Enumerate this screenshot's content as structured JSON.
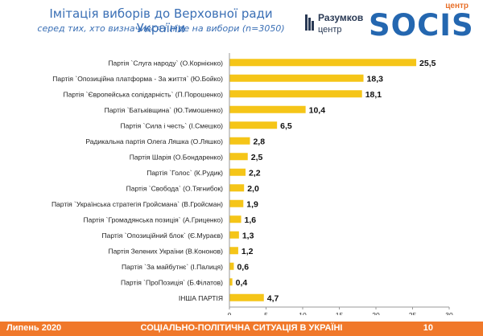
{
  "header": {
    "title": "Імітація виборів до Верховної ради України",
    "subtitle": "серед тих, хто визначився і піде на вибори (n=3050)"
  },
  "logos": {
    "razumkov_name": "Разумков",
    "razumkov_sub": "центр",
    "socis_centr": "центр",
    "socis_name": "SOCIS"
  },
  "footer": {
    "date": "Липень 2020",
    "caption": "СОЦІАЛЬНО-ПОЛІТИЧНА СИТУАЦІЯ В УКРАЇНІ",
    "page": "10"
  },
  "colors": {
    "bar": "#f5c518",
    "title": "#3a6fb5",
    "footer": "#f0782a",
    "socis_blue": "#2467b0",
    "socis_orange": "#e8702a"
  },
  "chart_data": {
    "type": "bar",
    "orientation": "horizontal",
    "categories": [
      "Партія `Слуга народу` (О.Корнієнко)",
      "Партія `Опозиційна платформа - За життя` (Ю.Бойко)",
      "Партія `Європейська солідарність` (П.Порошенко)",
      "Партія `Батьківщина` (Ю.Тимошенко)",
      "Партія `Сила і честь` (І.Смешко)",
      "Радикальна партія Олега Ляшка (О.Ляшко)",
      "Партія Шарія (О.Бондаренко)",
      "Партія `Голос` (К.Рудик)",
      "Партія `Свобода` (О.Тягнибок)",
      "Партія `Українська стратегія Гройсмана` (В.Гройсман)",
      "Партія `Громадянська позиція` (А.Гриценко)",
      "Партія `Опозиційний блок` (Є.Мураєв)",
      "Партія Зелених України (В.Кононов)",
      "Партія `За майбутнє` (І.Палиця)",
      "Партія `ПроПозиція` (Б.Філатов)",
      "ІНША ПАРТІЯ"
    ],
    "values": [
      25.5,
      18.3,
      18.1,
      10.4,
      6.5,
      2.8,
      2.5,
      2.2,
      2.0,
      1.9,
      1.6,
      1.3,
      1.2,
      0.6,
      0.4,
      4.7
    ],
    "value_labels": [
      "25,5",
      "18,3",
      "18,1",
      "10,4",
      "6,5",
      "2,8",
      "2,5",
      "2,2",
      "2,0",
      "1,9",
      "1,6",
      "1,3",
      "1,2",
      "0,6",
      "0,4",
      "4,7"
    ],
    "xlim": [
      0,
      30
    ],
    "xticks": [
      0,
      5,
      10,
      15,
      20,
      25,
      30
    ],
    "grid": false,
    "legend": "none"
  }
}
